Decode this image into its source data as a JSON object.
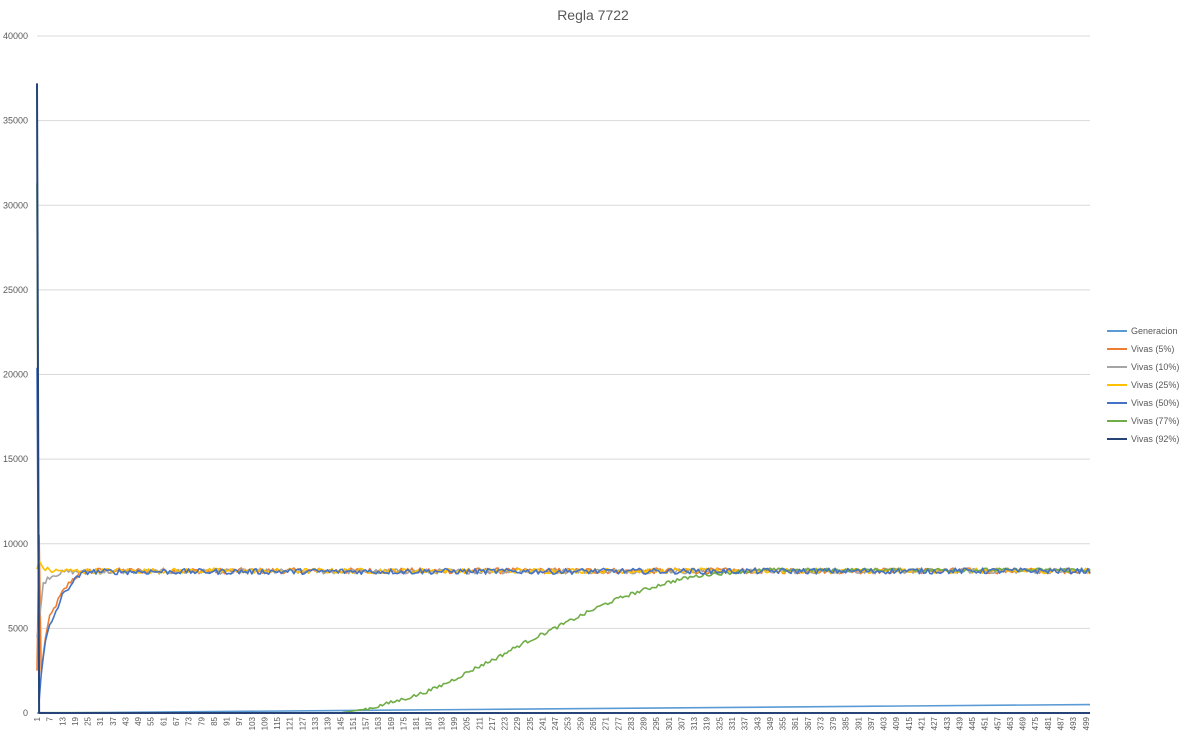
{
  "chart_data": {
    "type": "line",
    "title": "Regla 7722",
    "xlabel": "",
    "ylabel": "",
    "x_range": [
      1,
      501
    ],
    "ylim": [
      0,
      40000
    ],
    "y_ticks": [
      0,
      5000,
      10000,
      15000,
      20000,
      25000,
      30000,
      35000,
      40000
    ],
    "x_tick_start": 1,
    "x_tick_step": 6,
    "x_tick_end": 499,
    "grid": "horizontal",
    "legend_position": "right",
    "series": [
      {
        "name": "Generacion",
        "color": "#5b9bd5",
        "points": [
          [
            1,
            0
          ],
          [
            78,
            78
          ],
          [
            150,
            150
          ],
          [
            200,
            200
          ],
          [
            300,
            300
          ],
          [
            400,
            400
          ],
          [
            501,
            501
          ]
        ]
      },
      {
        "name": "Vivas (5%)",
        "color": "#ed7d31",
        "points": [
          [
            1,
            2500
          ],
          [
            2,
            10500
          ],
          [
            3,
            2300
          ],
          [
            5,
            4500
          ],
          [
            7,
            5600
          ],
          [
            10,
            6400
          ],
          [
            13,
            7100
          ],
          [
            17,
            7800
          ],
          [
            21,
            8200
          ],
          [
            25,
            8400
          ],
          [
            501,
            8400
          ]
        ],
        "noise": 170
      },
      {
        "name": "Vivas (10%)",
        "color": "#a5a5a5",
        "points": [
          [
            1,
            4500
          ],
          [
            2,
            5400
          ],
          [
            3,
            6500
          ],
          [
            4,
            7600
          ],
          [
            6,
            8000
          ],
          [
            10,
            8200
          ],
          [
            15,
            8350
          ],
          [
            501,
            8400
          ]
        ],
        "noise": 150
      },
      {
        "name": "Vivas (25%)",
        "color": "#ffc000",
        "points": [
          [
            1,
            8500
          ],
          [
            2,
            9000
          ],
          [
            4,
            8550
          ],
          [
            8,
            8400
          ],
          [
            501,
            8400
          ]
        ],
        "noise": 150
      },
      {
        "name": "Vivas (50%)",
        "color": "#4472c4",
        "points": [
          [
            1,
            20400
          ],
          [
            2,
            700
          ],
          [
            3,
            2300
          ],
          [
            5,
            4200
          ],
          [
            7,
            5100
          ],
          [
            10,
            6000
          ],
          [
            13,
            6900
          ],
          [
            17,
            7600
          ],
          [
            21,
            8100
          ],
          [
            25,
            8350
          ],
          [
            501,
            8400
          ]
        ],
        "noise": 170
      },
      {
        "name": "Vivas (77%)",
        "color": "#70ad47",
        "points": [
          [
            1,
            31300
          ],
          [
            2,
            20
          ],
          [
            145,
            0
          ],
          [
            150,
            100
          ],
          [
            160,
            300
          ],
          [
            170,
            650
          ],
          [
            180,
            1000
          ],
          [
            190,
            1450
          ],
          [
            200,
            2050
          ],
          [
            210,
            2700
          ],
          [
            220,
            3300
          ],
          [
            230,
            4000
          ],
          [
            240,
            4600
          ],
          [
            250,
            5200
          ],
          [
            260,
            5800
          ],
          [
            270,
            6400
          ],
          [
            280,
            6900
          ],
          [
            290,
            7300
          ],
          [
            300,
            7700
          ],
          [
            310,
            8000
          ],
          [
            320,
            8200
          ],
          [
            335,
            8350
          ],
          [
            350,
            8450
          ],
          [
            501,
            8450
          ]
        ],
        "noise": 110
      },
      {
        "name": "Vivas (92%)",
        "color": "#264478",
        "points": [
          [
            1,
            37200
          ],
          [
            2,
            0
          ],
          [
            501,
            0
          ]
        ],
        "noise": 0
      }
    ]
  }
}
